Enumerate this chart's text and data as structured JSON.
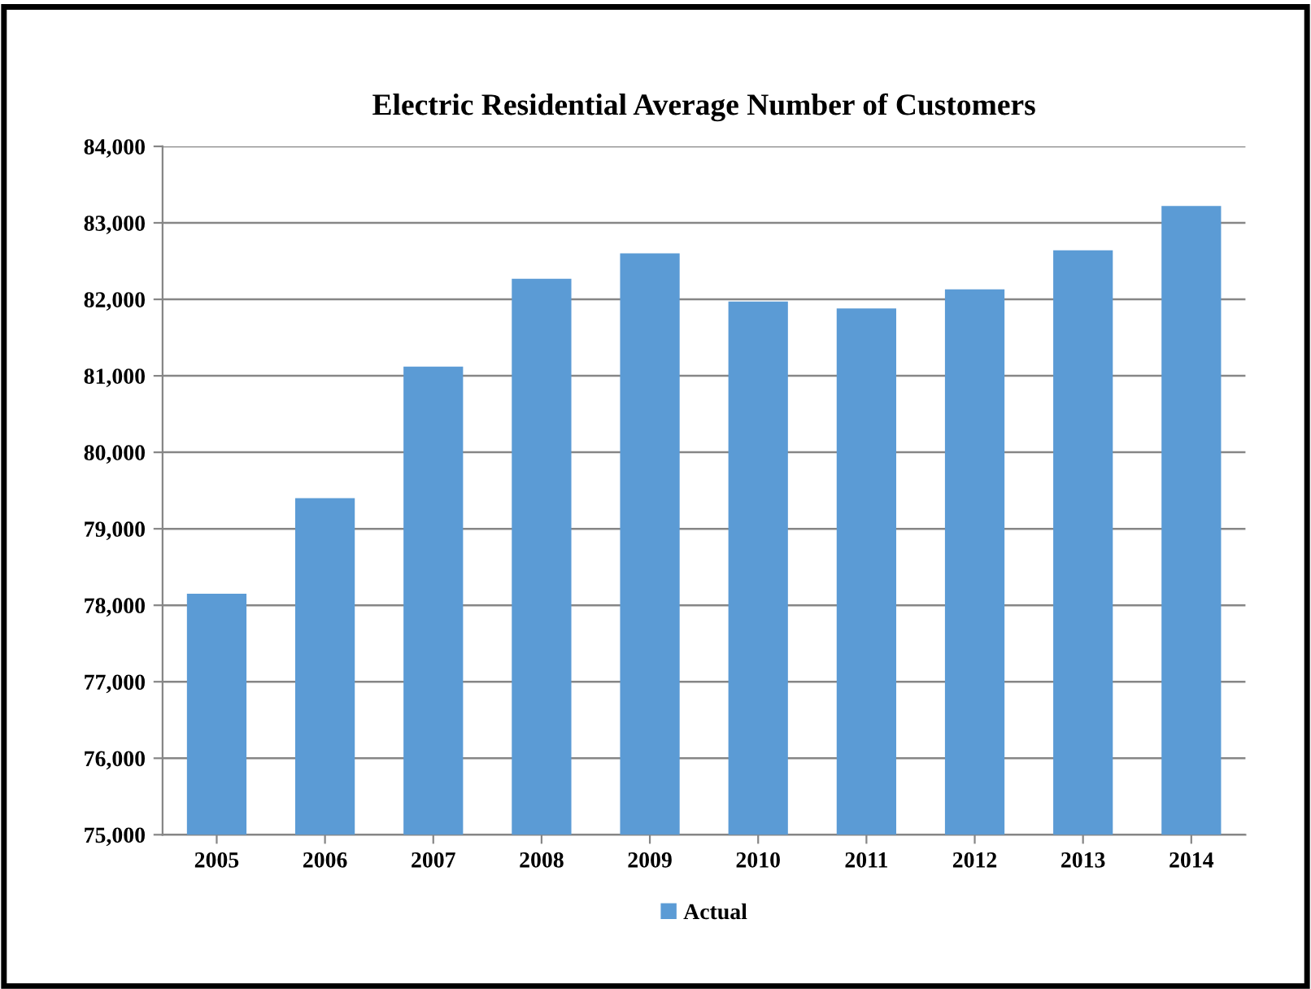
{
  "chart_data": {
    "type": "bar",
    "title": "Electric Residential Average Number of Customers",
    "categories": [
      "2005",
      "2006",
      "2007",
      "2008",
      "2009",
      "2010",
      "2011",
      "2012",
      "2013",
      "2014"
    ],
    "series": [
      {
        "name": "Actual",
        "color": "#5b9bd5",
        "values": [
          78150,
          79400,
          81120,
          82270,
          82600,
          81970,
          81880,
          82130,
          82640,
          83220
        ]
      }
    ],
    "ylim": [
      75000,
      84000
    ],
    "yticks": [
      {
        "value": 75000,
        "label": "75,000"
      },
      {
        "value": 76000,
        "label": "76,000"
      },
      {
        "value": 77000,
        "label": "77,000"
      },
      {
        "value": 78000,
        "label": "78,000"
      },
      {
        "value": 79000,
        "label": "79,000"
      },
      {
        "value": 80000,
        "label": "80,000"
      },
      {
        "value": 81000,
        "label": "81,000"
      },
      {
        "value": 82000,
        "label": "82,000"
      },
      {
        "value": 83000,
        "label": "83,000"
      },
      {
        "value": 84000,
        "label": "84,000"
      }
    ],
    "grid": "y",
    "legend": "bottom"
  }
}
